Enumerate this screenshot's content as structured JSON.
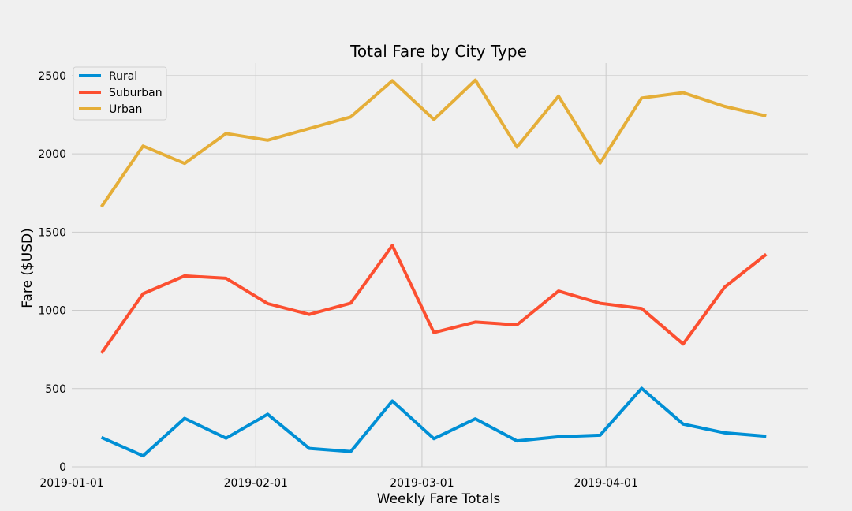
{
  "colors": {
    "background": "#f0f0f0",
    "grid": "#cbcbcb",
    "legend_bg": "#f0f0f0",
    "legend_border": "#d0d0d0"
  },
  "chart_data": {
    "type": "line",
    "title": "Total Fare by City Type",
    "xlabel": "Weekly Fare Totals",
    "ylabel": "Fare ($USD)",
    "ylim": [
      0,
      2580
    ],
    "yticks": [
      0,
      500,
      1000,
      1500,
      2000,
      2500
    ],
    "xlim": [
      "2019-01-01",
      "2019-05-05"
    ],
    "xticks": [
      {
        "date": "2019-01-01",
        "label": "2019-01-01"
      },
      {
        "date": "2019-02-01",
        "label": "2019-02-01"
      },
      {
        "date": "2019-03-01",
        "label": "2019-03-01"
      },
      {
        "date": "2019-04-01",
        "label": "2019-04-01"
      }
    ],
    "grid": true,
    "legend_position": "top-left",
    "x": [
      "2019-01-06",
      "2019-01-13",
      "2019-01-20",
      "2019-01-27",
      "2019-02-03",
      "2019-02-10",
      "2019-02-17",
      "2019-02-24",
      "2019-03-03",
      "2019-03-10",
      "2019-03-17",
      "2019-03-24",
      "2019-03-31",
      "2019-04-07",
      "2019-04-14",
      "2019-04-21",
      "2019-04-28"
    ],
    "series": [
      {
        "name": "Rural",
        "color": "#008fd5",
        "values": [
          188,
          70,
          310,
          183,
          336,
          118,
          98,
          421,
          180,
          307,
          166,
          192,
          202,
          502,
          273,
          217,
          195
        ]
      },
      {
        "name": "Suburban",
        "color": "#fc4f30",
        "values": [
          726,
          1106,
          1220,
          1205,
          1043,
          974,
          1046,
          1414,
          858,
          925,
          907,
          1123,
          1045,
          1012,
          785,
          1149,
          1358
        ]
      },
      {
        "name": "Urban",
        "color": "#e5ae38",
        "values": [
          1662,
          2050,
          1939,
          2130,
          2087,
          2162,
          2236,
          2467,
          2219,
          2471,
          2044,
          2369,
          1941,
          2357,
          2391,
          2303,
          2242
        ]
      }
    ]
  }
}
